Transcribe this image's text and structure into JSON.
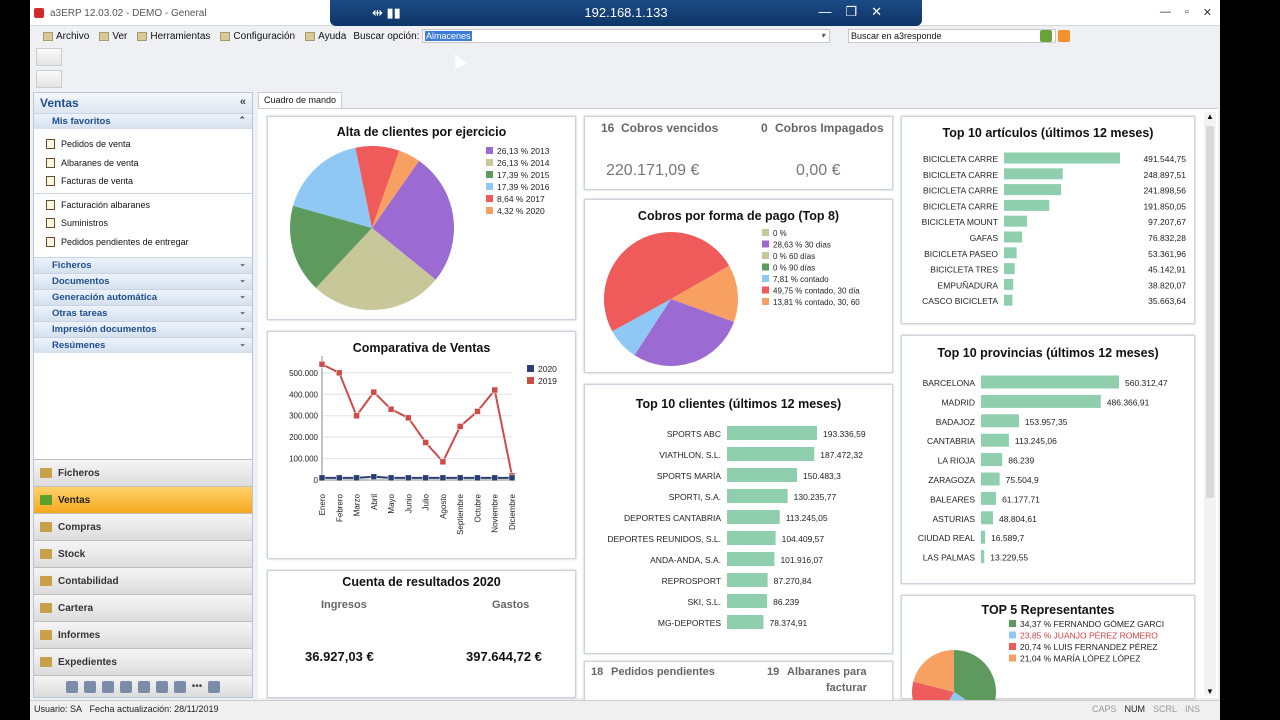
{
  "window": {
    "title": "a3ERP 12.03.02 - DEMO - General",
    "remote_ip": "192.168.1.133"
  },
  "menu": {
    "items": [
      "Archivo",
      "Ver",
      "Herramientas",
      "Configuración",
      "Ayuda"
    ],
    "search_label": "Buscar opción:",
    "search_value": "Almacenes",
    "a3_search_placeholder": "Buscar en a3responde"
  },
  "sidebar": {
    "title": "Ventas",
    "favorites_header": "Mis favoritos",
    "favorites": [
      "Pedidos de venta",
      "Albaranes de venta",
      "Facturas de venta"
    ],
    "others": [
      "Facturación albaranes",
      "Suministros",
      "Pedidos pendientes de entregar"
    ],
    "sections": [
      "Ficheros",
      "Documentos",
      "Generación automática",
      "Otras tareas",
      "Impresión documentos",
      "Resúmenes"
    ],
    "modules": [
      "Ficheros",
      "Ventas",
      "Compras",
      "Stock",
      "Contabilidad",
      "Cartera",
      "Informes",
      "Expedientes"
    ]
  },
  "tab": "Cuadro de mando",
  "status": {
    "user": "Usuario: SA",
    "date": "Fecha actualización: 28/11/2019",
    "caps": "CAPS",
    "num": "NUM",
    "scrl": "SCRL",
    "ins": "INS"
  },
  "colors": {
    "purple": "#9b6bd3",
    "olive": "#c7c79a",
    "green": "#5e9a5e",
    "lightblue": "#8fc8f5",
    "red": "#ef5a5a",
    "orange": "#f7a062",
    "bar": "#8fcfae",
    "line2019": "#cc4b4b",
    "line2020": "#2b3f6e"
  },
  "kpi": {
    "vencidos_count": "16",
    "vencidos_label": "Cobros vencidos",
    "vencidos_value": "220.171,09 €",
    "impagados_count": "0",
    "impagados_label": "Cobros Impagados",
    "impagados_value": "0,00 €",
    "pedidos_count": "18",
    "pedidos_label": "Pedidos pendientes",
    "albaranes_count": "19",
    "albaranes_label1": "Albaranes para",
    "albaranes_label2": "facturar"
  },
  "resultados": {
    "title": "Cuenta de resultados 2020",
    "ingresos_label": "Ingresos",
    "gastos_label": "Gastos",
    "ingresos_value": "36.927,03 €",
    "gastos_value": "397.644,72 €"
  },
  "chart_data": [
    {
      "type": "pie",
      "title": "Alta de clientes por ejercicio",
      "labels": [
        "26,13 % 2013",
        "26,13 % 2014",
        "17,39 % 2015",
        "17,39 % 2016",
        "8,64 % 2017",
        "4,32 % 2020"
      ],
      "values": [
        26.13,
        26.13,
        17.39,
        17.39,
        8.64,
        4.32
      ]
    },
    {
      "type": "line",
      "title": "Comparativa de Ventas",
      "categories": [
        "Enero",
        "Febrero",
        "Marzo",
        "Abril",
        "Mayo",
        "Junio",
        "Julio",
        "Agosto",
        "Septiembre",
        "Octubre",
        "Noviembre",
        "Diciembre"
      ],
      "series": [
        {
          "name": "2020",
          "values": [
            10000,
            10000,
            10000,
            15000,
            10000,
            10000,
            10000,
            10000,
            10000,
            10000,
            10000,
            10000
          ]
        },
        {
          "name": "2019",
          "values": [
            540000,
            500000,
            300000,
            410000,
            330000,
            290000,
            175000,
            85000,
            250000,
            320000,
            420000,
            20000
          ]
        }
      ],
      "yticks": [
        "500.000",
        "400.000",
        "300.000",
        "200.000",
        "100.000",
        "0"
      ],
      "ylim": [
        0,
        560000
      ]
    },
    {
      "type": "pie",
      "title": "Cobros por forma de pago (Top 8)",
      "labels": [
        "0 %",
        "28,63 % 30 días",
        "0 % 60 días",
        "0 % 90 días",
        "7,81 % contado",
        "49,75 % contado, 30 día",
        "13,81 % contado, 30, 60"
      ],
      "values": [
        0,
        28.63,
        0,
        0,
        7.81,
        49.75,
        13.81
      ]
    },
    {
      "type": "bar",
      "title": "Top 10 clientes (últimos 12 meses)",
      "categories": [
        "SPORTS ABC",
        "VIATHLON, S.L.",
        "SPORTS MARÍA",
        "SPORTI, S.A.",
        "DEPORTES CANTABRIA",
        "DEPORTES REUNIDOS, S.L.",
        "ANDA-ANDA, S.A.",
        "REPROSPORT",
        "SKI, S.L.",
        "MG-DEPORTES"
      ],
      "values": [
        193336.59,
        187472.32,
        150483.3,
        130235.77,
        113245.05,
        104409.57,
        101916.07,
        87270.84,
        86239,
        78374.91
      ],
      "labels": [
        "193.336,59",
        "187.472,32",
        "150.483,3",
        "130.235,77",
        "113.245,05",
        "104.409,57",
        "101.916,07",
        "87.270,84",
        "86.239",
        "78.374,91"
      ]
    },
    {
      "type": "bar",
      "title": "Top 10 artículos (últimos 12 meses)",
      "categories": [
        "BICICLETA CARRE",
        "BICICLETA CARRE",
        "BICICLETA CARRE",
        "BICICLETA CARRE",
        "BICICLETA MOUNT",
        "GAFAS",
        "BICICLETA PASEO",
        "BICICLETA TRES",
        "EMPUÑADURA",
        "CASCO BICICLETA"
      ],
      "values": [
        491544.75,
        248897.51,
        241898.56,
        191850.05,
        97207.67,
        76832.28,
        53361.96,
        45142.91,
        38820.07,
        35663.64
      ],
      "labels": [
        "491.544,75",
        "248.897,51",
        "241.898,56",
        "191.850,05",
        "97.207,67",
        "76.832,28",
        "53.361,96",
        "45.142,91",
        "38.820,07",
        "35.663,64"
      ]
    },
    {
      "type": "bar",
      "title": "Top 10 provincias (últimos 12 meses)",
      "categories": [
        "BARCELONA",
        "MADRID",
        "BADAJOZ",
        "CANTABRIA",
        "LA RIOJA",
        "ZARAGOZA",
        "BALEARES",
        "ASTURIAS",
        "CIUDAD REAL",
        "LAS PALMAS"
      ],
      "values": [
        560312.47,
        486366.91,
        153957.35,
        113245.06,
        86239,
        75504.9,
        61177.71,
        48804.61,
        16589.7,
        13229.55
      ],
      "labels": [
        "560.312,47",
        "486.366,91",
        "153.957,35",
        "113.245,06",
        "86.239",
        "75.504,9",
        "61.177,71",
        "48.804,61",
        "16.589,7",
        "13.229,55"
      ]
    },
    {
      "type": "pie",
      "title": "TOP 5 Representantes",
      "labels": [
        "34,37 % FERNANDO GÓMEZ GARCI",
        "23,85 % JUANJO PÉREZ ROMERO",
        "20,74 % LUIS FERNANDEZ PÉREZ",
        "21,04 % MARÍA LÓPEZ LÓPEZ"
      ],
      "values": [
        34.37,
        23.85,
        20.74,
        21.04
      ]
    }
  ]
}
